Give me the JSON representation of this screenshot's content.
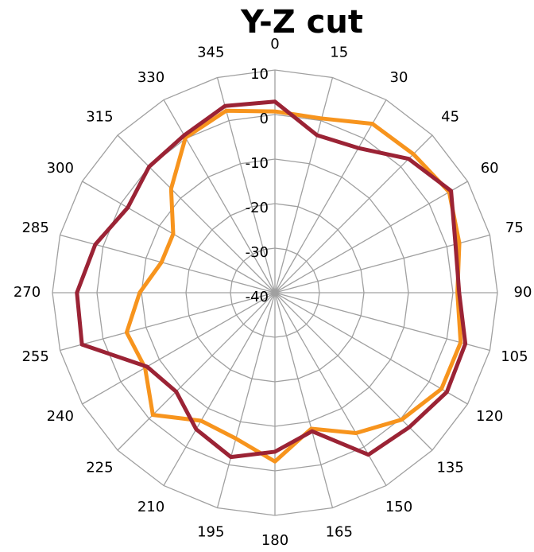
{
  "chart_data": {
    "type": "radar",
    "title": "Y-Z cut",
    "categories": [
      "0",
      "15",
      "30",
      "45",
      "60",
      "75",
      "90",
      "105",
      "120",
      "135",
      "150",
      "165",
      "180",
      "195",
      "210",
      "225",
      "240",
      "255",
      "270",
      "285",
      "300",
      "315",
      "330",
      "345"
    ],
    "series": [
      {
        "color": "#f7941d",
        "values": [
          0.7,
          0.5,
          3.8,
          4,
          5.2,
          2.9,
          1,
          3.2,
          3.2,
          0.3,
          -3.6,
          -8.4,
          -2.1,
          -6.1,
          -6.8,
          -1.2,
          -6.3,
          -5.5,
          -9.6,
          -13.6,
          -13.6,
          -7,
          0.2,
          2.3
        ]
      },
      {
        "color": "#9b2335",
        "values": [
          2.9,
          -3.4,
          -2.5,
          2.5,
          5.7,
          2,
          1.4,
          4.3,
          4.6,
          2.7,
          2,
          -7.8,
          -4.3,
          -1.8,
          -4.6,
          -8.6,
          -6.8,
          4.9,
          4.5,
          1.8,
          -1.8,
          0,
          0.8,
          3.4
        ]
      }
    ],
    "ylim": [
      -40,
      10
    ],
    "yticks": [
      -40,
      -30,
      -20,
      -10,
      0,
      10
    ],
    "grid": true
  }
}
